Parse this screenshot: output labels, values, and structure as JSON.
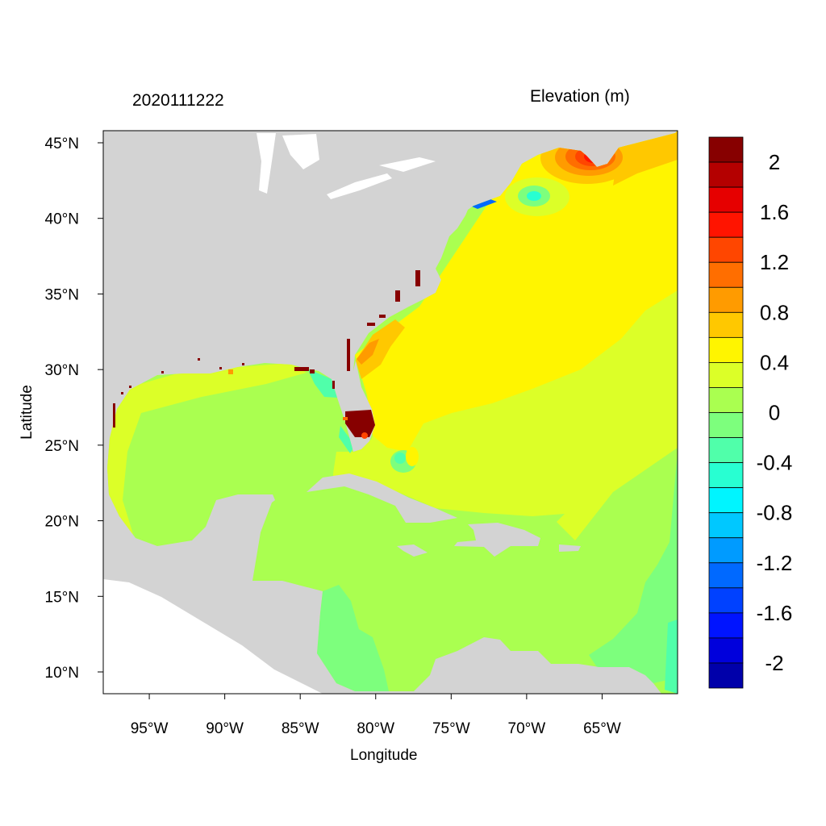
{
  "chart_data": {
    "type": "heatmap",
    "title_left": "2020111222",
    "title_right": "Elevation (m)",
    "xlabel": "Longitude",
    "ylabel": "Latitude",
    "xlim": [
      -98.05,
      -60.0
    ],
    "ylim": [
      8.56,
      45.8
    ],
    "x_ticks": [
      {
        "value": -95,
        "label": "95°W"
      },
      {
        "value": -90,
        "label": "90°W"
      },
      {
        "value": -85,
        "label": "85°W"
      },
      {
        "value": -80,
        "label": "80°W"
      },
      {
        "value": -75,
        "label": "75°W"
      },
      {
        "value": -70,
        "label": "70°W"
      },
      {
        "value": -65,
        "label": "65°W"
      }
    ],
    "y_ticks": [
      {
        "value": 45,
        "label": "45°N"
      },
      {
        "value": 40,
        "label": "40°N"
      },
      {
        "value": 35,
        "label": "35°N"
      },
      {
        "value": 30,
        "label": "30°N"
      },
      {
        "value": 25,
        "label": "25°N"
      },
      {
        "value": 20,
        "label": "20°N"
      },
      {
        "value": 15,
        "label": "15°N"
      },
      {
        "value": 10,
        "label": "10°N"
      }
    ],
    "colorbar": {
      "levels_top_to_bottom": [
        2.2,
        2.0,
        1.8,
        1.6,
        1.4,
        1.2,
        1.0,
        0.8,
        0.6,
        0.4,
        0.2,
        0.0,
        -0.2,
        -0.4,
        -0.6,
        -0.8,
        -1.0,
        -1.2,
        -1.4,
        -1.6,
        -1.8,
        -2.0,
        -2.2
      ],
      "colors_top_to_bottom": [
        "#870000",
        "#B40000",
        "#E60000",
        "#FF1400",
        "#FF4600",
        "#FF6E00",
        "#FF9B00",
        "#FFC800",
        "#FFF500",
        "#DCFF28",
        "#AAFF50",
        "#7DFF7D",
        "#50FFAA",
        "#28FFD2",
        "#00F5FF",
        "#00C8FF",
        "#009BFF",
        "#0069FF",
        "#0041FF",
        "#0014FF",
        "#0000DC",
        "#0000AA"
      ],
      "labels": [
        {
          "value": 2,
          "label": "2"
        },
        {
          "value": 1.6,
          "label": "1.6"
        },
        {
          "value": 1.2,
          "label": "1.2"
        },
        {
          "value": 0.8,
          "label": "0.8"
        },
        {
          "value": 0.4,
          "label": "0.4"
        },
        {
          "value": 0,
          "label": "0"
        },
        {
          "value": -0.4,
          "label": "-0.4"
        },
        {
          "value": -0.8,
          "label": "-0.8"
        },
        {
          "value": -1.2,
          "label": "-1.2"
        },
        {
          "value": -1.6,
          "label": "-1.6"
        },
        {
          "value": -2,
          "label": "-2"
        }
      ]
    },
    "colors": {
      "land": "#D3D3D3",
      "nodata": "#FFFFFF"
    }
  }
}
